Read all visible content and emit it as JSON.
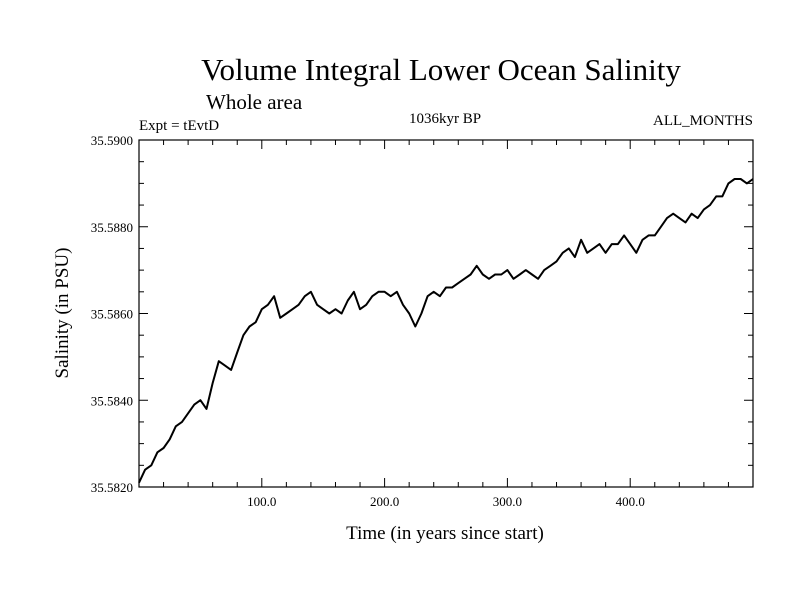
{
  "chart_data": {
    "type": "line",
    "title": "Volume Integral Lower Ocean Salinity",
    "subtitle": "Whole area",
    "experiment": "Expt = tEvtD",
    "period": "1036kyr BP",
    "months": "ALL_MONTHS",
    "xlabel": "Time (in years since start)",
    "ylabel": "Salinity (in PSU)",
    "xlim": [
      0,
      500
    ],
    "ylim": [
      35.582,
      35.59
    ],
    "xticks": [
      {
        "value": 100,
        "label": "100.0"
      },
      {
        "value": 200,
        "label": "200.0"
      },
      {
        "value": 300,
        "label": "300.0"
      },
      {
        "value": 400,
        "label": "400.0"
      }
    ],
    "yticks": [
      {
        "value": 35.582,
        "label": "35.5820"
      },
      {
        "value": 35.584,
        "label": "35.5840"
      },
      {
        "value": 35.586,
        "label": "35.5860"
      },
      {
        "value": 35.588,
        "label": "35.5880"
      },
      {
        "value": 35.59,
        "label": "35.5900"
      }
    ],
    "series": [
      {
        "name": "Volume integral lower ocean salinity",
        "x": [
          0,
          5,
          10,
          15,
          20,
          25,
          30,
          35,
          40,
          45,
          50,
          55,
          60,
          65,
          70,
          75,
          80,
          85,
          90,
          95,
          100,
          105,
          110,
          115,
          120,
          125,
          130,
          135,
          140,
          145,
          150,
          155,
          160,
          165,
          170,
          175,
          180,
          185,
          190,
          195,
          200,
          205,
          210,
          215,
          220,
          225,
          230,
          235,
          240,
          245,
          250,
          255,
          260,
          265,
          270,
          275,
          280,
          285,
          290,
          295,
          300,
          305,
          310,
          315,
          320,
          325,
          330,
          335,
          340,
          345,
          350,
          355,
          360,
          365,
          370,
          375,
          380,
          385,
          390,
          395,
          400,
          405,
          410,
          415,
          420,
          425,
          430,
          435,
          440,
          445,
          450,
          455,
          460,
          465,
          470,
          475,
          480,
          485,
          490,
          495,
          500
        ],
        "y": [
          35.5821,
          35.5824,
          35.5825,
          35.5828,
          35.5829,
          35.5831,
          35.5834,
          35.5835,
          35.5837,
          35.5839,
          35.584,
          35.5838,
          35.5844,
          35.5849,
          35.5848,
          35.5847,
          35.5851,
          35.5855,
          35.5857,
          35.5858,
          35.5861,
          35.5862,
          35.5864,
          35.5859,
          35.586,
          35.5861,
          35.5862,
          35.5864,
          35.5865,
          35.5862,
          35.5861,
          35.586,
          35.5861,
          35.586,
          35.5863,
          35.5865,
          35.5861,
          35.5862,
          35.5864,
          35.5865,
          35.5865,
          35.5864,
          35.5865,
          35.5862,
          35.586,
          35.5857,
          35.586,
          35.5864,
          35.5865,
          35.5864,
          35.5866,
          35.5866,
          35.5867,
          35.5868,
          35.5869,
          35.5871,
          35.5869,
          35.5868,
          35.5869,
          35.5869,
          35.587,
          35.5868,
          35.5869,
          35.587,
          35.5869,
          35.5868,
          35.587,
          35.5871,
          35.5872,
          35.5874,
          35.5875,
          35.5873,
          35.5877,
          35.5874,
          35.5875,
          35.5876,
          35.5874,
          35.5876,
          35.5876,
          35.5878,
          35.5876,
          35.5874,
          35.5877,
          35.5878,
          35.5878,
          35.588,
          35.5882,
          35.5883,
          35.5882,
          35.5881,
          35.5883,
          35.5882,
          35.5884,
          35.5885,
          35.5887,
          35.5887,
          35.589,
          35.5891,
          35.5891,
          35.589,
          35.5891
        ]
      }
    ]
  }
}
